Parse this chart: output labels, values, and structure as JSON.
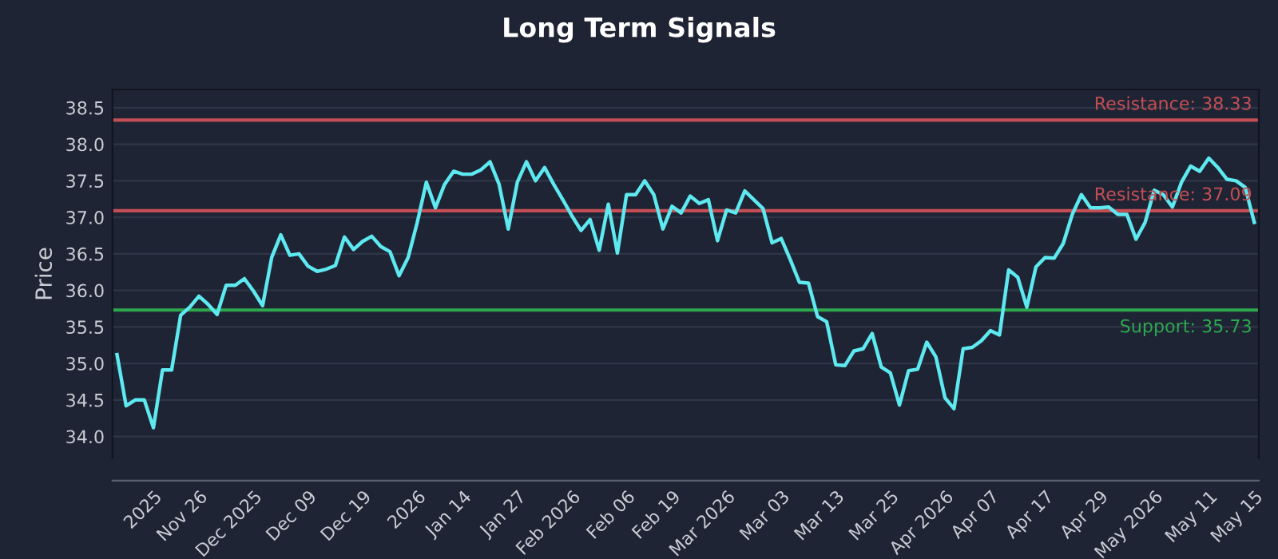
{
  "chart_data": {
    "type": "line",
    "title": "Long Term Signals",
    "ylabel": "Price",
    "categories": [
      null,
      null,
      null,
      null,
      "2025",
      null,
      null,
      null,
      null,
      "Nov 26",
      null,
      null,
      null,
      null,
      null,
      "Dec 2025",
      null,
      null,
      null,
      null,
      null,
      "Dec 09",
      null,
      null,
      null,
      null,
      null,
      "Dec 19",
      null,
      null,
      null,
      null,
      null,
      "2026",
      null,
      null,
      null,
      null,
      "Jan 14",
      null,
      null,
      null,
      null,
      null,
      "Jan 27",
      null,
      null,
      null,
      null,
      null,
      "Feb 2026",
      null,
      null,
      null,
      null,
      null,
      "Feb 06",
      null,
      null,
      null,
      null,
      "Feb 19",
      null,
      null,
      null,
      null,
      null,
      "Mar 2026",
      null,
      null,
      null,
      null,
      null,
      "Mar 03",
      null,
      null,
      null,
      null,
      null,
      "Mar 13",
      null,
      null,
      null,
      null,
      null,
      "Mar 25",
      null,
      null,
      null,
      null,
      null,
      "Apr 2026",
      null,
      null,
      null,
      null,
      "Apr 07",
      null,
      null,
      null,
      null,
      null,
      "Apr 17",
      null,
      null,
      null,
      null,
      null,
      "Apr 29",
      null,
      null,
      null,
      null,
      null,
      "May 2026",
      null,
      null,
      null,
      null,
      null,
      "May 11",
      null,
      null,
      null,
      null,
      "May 15"
    ],
    "series": [
      {
        "color": "#5ee8f0",
        "values": [
          35.12,
          34.42,
          34.5,
          34.5,
          34.12,
          34.91,
          34.91,
          35.66,
          35.77,
          35.92,
          35.81,
          35.67,
          36.07,
          36.07,
          36.16,
          35.99,
          35.79,
          36.45,
          36.76,
          36.48,
          36.5,
          36.33,
          36.26,
          36.29,
          36.34,
          36.73,
          36.56,
          36.67,
          36.74,
          36.6,
          36.53,
          36.2,
          36.45,
          36.93,
          37.48,
          37.13,
          37.45,
          37.63,
          37.59,
          37.59,
          37.65,
          37.76,
          37.45,
          36.84,
          37.48,
          37.76,
          37.5,
          37.68,
          37.45,
          37.24,
          37.02,
          36.82,
          36.97,
          36.55,
          37.18,
          36.51,
          37.31,
          37.31,
          37.5,
          37.31,
          36.84,
          37.15,
          37.06,
          37.29,
          37.19,
          37.24,
          36.68,
          37.1,
          37.06,
          37.36,
          37.24,
          37.12,
          36.65,
          36.71,
          36.42,
          36.11,
          36.1,
          35.64,
          35.57,
          34.98,
          34.97,
          35.17,
          35.2,
          35.41,
          34.95,
          34.87,
          34.43,
          34.9,
          34.92,
          35.29,
          35.09,
          34.53,
          34.38,
          35.2,
          35.22,
          35.31,
          35.45,
          35.39,
          36.28,
          36.18,
          35.77,
          36.32,
          36.45,
          36.44,
          36.64,
          37.04,
          37.31,
          37.13,
          37.13,
          37.14,
          37.04,
          37.04,
          36.7,
          36.93,
          37.37,
          37.31,
          37.14,
          37.48,
          37.7,
          37.63,
          37.81,
          37.68,
          37.52,
          37.5,
          37.41,
          36.93
        ]
      }
    ],
    "ylim": [
      33.7,
      38.75
    ],
    "yticks": [
      {
        "value": 34,
        "label": "34.0"
      },
      34.5,
      {
        "value": 35,
        "label": "35.0"
      },
      35.5,
      {
        "value": 36,
        "label": "36.0"
      },
      36.5,
      {
        "value": 37,
        "label": "37.0"
      },
      37.5,
      {
        "value": 38,
        "label": "38.0"
      },
      38.5
    ],
    "grid": "y",
    "marker": "none",
    "line_style": "solid",
    "ref_lines": [
      {
        "axis": "y",
        "value": 38.33,
        "label": "Resistance: 38.33",
        "color": "#c44e55"
      },
      {
        "axis": "y",
        "value": 37.09,
        "label": "Resistance: 37.09",
        "color": "#c44e55"
      },
      {
        "axis": "y",
        "value": 35.73,
        "label": "Support: 35.73",
        "color": "#2ea84f"
      }
    ]
  }
}
